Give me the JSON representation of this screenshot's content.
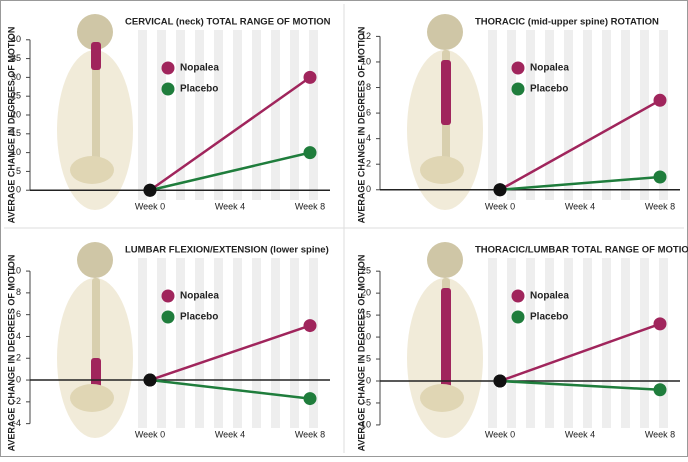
{
  "chart_data": [
    {
      "type": "line",
      "title": "CERVICAL (neck) TOTAL RANGE OF MOTION",
      "y_label": "AVERAGE CHANGE IN DEGREES OF MOTION",
      "x": [
        0,
        8
      ],
      "xlim": [
        -6,
        9
      ],
      "xticks": [
        {
          "value": 0,
          "label": "Week 0"
        },
        {
          "value": 4,
          "label": "Week 4"
        },
        {
          "value": 8,
          "label": "Week 8"
        }
      ],
      "ylim": [
        -2.6,
        42.6
      ],
      "yticks": [
        0,
        5,
        10,
        15,
        20,
        25,
        30,
        35,
        40
      ],
      "series": [
        {
          "name": "Nopalea",
          "color": "#a0255c",
          "values": [
            0,
            30
          ]
        },
        {
          "name": "Placebo",
          "color": "#1f7d3c",
          "values": [
            0,
            10
          ]
        }
      ]
    },
    {
      "type": "line",
      "title": "THORACIC (mid-upper spine) ROTATION",
      "y_label": "AVERAGE CHANGE IN DEGREES OF MOTION",
      "x": [
        0,
        8
      ],
      "xlim": [
        -6,
        9
      ],
      "xticks": [
        {
          "value": 0,
          "label": "Week 0"
        },
        {
          "value": 4,
          "label": "Week 4"
        },
        {
          "value": 8,
          "label": "Week 8"
        }
      ],
      "ylim": [
        -0.8,
        12.5
      ],
      "yticks": [
        0,
        2,
        4,
        6,
        8,
        10,
        12
      ],
      "series": [
        {
          "name": "Nopalea",
          "color": "#a0255c",
          "values": [
            0,
            7
          ]
        },
        {
          "name": "Placebo",
          "color": "#1f7d3c",
          "values": [
            0,
            1
          ]
        }
      ]
    },
    {
      "type": "line",
      "title": "LUMBAR FLEXION/EXTENSION (lower spine)",
      "y_label": "AVERAGE CHANGE IN DEGREES OF MOTION",
      "x": [
        0,
        8
      ],
      "xlim": [
        -6,
        9
      ],
      "xticks": [
        {
          "value": 0,
          "label": "Week 0"
        },
        {
          "value": 4,
          "label": "Week 4"
        },
        {
          "value": 8,
          "label": "Week 8"
        }
      ],
      "ylim": [
        -4.4,
        11.2
      ],
      "yticks": [
        -4,
        -2,
        0,
        2,
        4,
        6,
        8,
        10
      ],
      "series": [
        {
          "name": "Nopalea",
          "color": "#a0255c",
          "values": [
            0,
            5
          ]
        },
        {
          "name": "Placebo",
          "color": "#1f7d3c",
          "values": [
            0,
            -1.7
          ]
        }
      ]
    },
    {
      "type": "line",
      "title": "THORACIC/LUMBAR TOTAL RANGE OF MOTION",
      "y_label": "AVERAGE CHANGE IN DEGREES OF MOTION",
      "x": [
        0,
        8
      ],
      "xlim": [
        -6,
        9
      ],
      "xticks": [
        {
          "value": 0,
          "label": "Week 0"
        },
        {
          "value": 4,
          "label": "Week 4"
        },
        {
          "value": 8,
          "label": "Week 8"
        }
      ],
      "ylim": [
        -10.7,
        28
      ],
      "yticks": [
        -10,
        -5,
        0,
        5,
        10,
        15,
        20,
        25
      ],
      "series": [
        {
          "name": "Nopalea",
          "color": "#a0255c",
          "values": [
            0,
            13
          ]
        },
        {
          "name": "Placebo",
          "color": "#1f7d3c",
          "values": [
            0,
            -2
          ]
        }
      ]
    }
  ]
}
